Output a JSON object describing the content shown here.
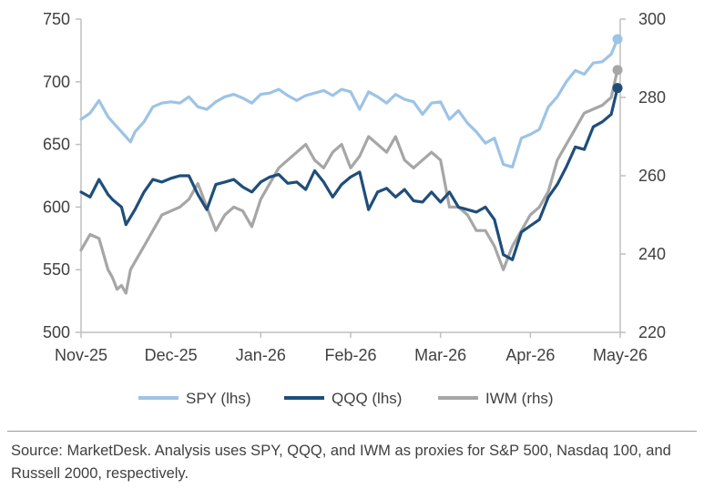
{
  "colors": {
    "SPY": "#9DC3E6",
    "QQQ": "#1F4E79",
    "IWM": "#A6A6A6",
    "axis": "#BFBFBF",
    "text": "#404040"
  },
  "chart_data": {
    "type": "line",
    "legend_position": "bottom",
    "grid": false,
    "left_axis": {
      "ylim": [
        500,
        750
      ],
      "ticks": [
        "500",
        "550",
        "600",
        "650",
        "700",
        "750"
      ]
    },
    "right_axis": {
      "ylim": [
        220,
        300
      ],
      "ticks": [
        "220",
        "240",
        "260",
        "280",
        "300"
      ]
    },
    "x_tick_labels": [
      "Nov-25",
      "Dec-25",
      "Jan-26",
      "Feb-26",
      "Mar-26",
      "Apr-26",
      "May-26"
    ],
    "x_range": [
      0,
      6
    ],
    "series": [
      {
        "name": "SPY (lhs)",
        "axis": "left",
        "color": "#9DC3E6",
        "x": [
          0,
          0.1,
          0.2,
          0.3,
          0.35,
          0.45,
          0.55,
          0.6,
          0.7,
          0.8,
          0.9,
          1.0,
          1.1,
          1.2,
          1.3,
          1.4,
          1.5,
          1.6,
          1.7,
          1.8,
          1.9,
          2.0,
          2.1,
          2.2,
          2.3,
          2.4,
          2.5,
          2.6,
          2.7,
          2.8,
          2.9,
          3.0,
          3.1,
          3.2,
          3.3,
          3.4,
          3.5,
          3.6,
          3.7,
          3.8,
          3.9,
          4.0,
          4.1,
          4.2,
          4.3,
          4.4,
          4.5,
          4.6,
          4.7,
          4.8,
          4.9,
          5.0,
          5.1,
          5.2,
          5.3,
          5.4,
          5.5,
          5.6,
          5.7,
          5.8,
          5.9,
          5.97
        ],
        "values": [
          670,
          675,
          685,
          672,
          668,
          660,
          652,
          660,
          668,
          680,
          683,
          684,
          683,
          688,
          680,
          678,
          684,
          688,
          690,
          687,
          683,
          690,
          691,
          694,
          689,
          685,
          689,
          691,
          693,
          689,
          694,
          692,
          678,
          692,
          688,
          683,
          690,
          686,
          684,
          674,
          683,
          684,
          670,
          677,
          667,
          660,
          651,
          655,
          634,
          632,
          655,
          658,
          662,
          680,
          688,
          700,
          709,
          706,
          715,
          716,
          722,
          734
        ]
      },
      {
        "name": "QQQ (lhs)",
        "axis": "left",
        "color": "#1F4E79",
        "x": [
          0,
          0.1,
          0.2,
          0.3,
          0.35,
          0.45,
          0.5,
          0.6,
          0.7,
          0.8,
          0.9,
          1.0,
          1.1,
          1.2,
          1.3,
          1.4,
          1.5,
          1.6,
          1.7,
          1.8,
          1.9,
          2.0,
          2.1,
          2.2,
          2.3,
          2.4,
          2.5,
          2.6,
          2.7,
          2.8,
          2.9,
          3.0,
          3.1,
          3.2,
          3.3,
          3.4,
          3.5,
          3.6,
          3.7,
          3.8,
          3.9,
          4.0,
          4.1,
          4.2,
          4.3,
          4.4,
          4.5,
          4.6,
          4.7,
          4.8,
          4.9,
          5.0,
          5.1,
          5.2,
          5.3,
          5.4,
          5.5,
          5.6,
          5.7,
          5.8,
          5.9,
          5.97
        ],
        "values": [
          612,
          608,
          622,
          610,
          606,
          600,
          586,
          598,
          612,
          622,
          620,
          623,
          625,
          625,
          610,
          598,
          618,
          620,
          622,
          616,
          612,
          620,
          624,
          626,
          619,
          620,
          614,
          629,
          620,
          608,
          618,
          624,
          628,
          598,
          612,
          615,
          608,
          614,
          605,
          604,
          612,
          604,
          612,
          600,
          598,
          596,
          600,
          590,
          562,
          558,
          580,
          585,
          590,
          608,
          618,
          632,
          648,
          646,
          664,
          668,
          674,
          695
        ]
      },
      {
        "name": "IWM (rhs)",
        "axis": "right",
        "color": "#A6A6A6",
        "x": [
          0,
          0.1,
          0.2,
          0.3,
          0.35,
          0.4,
          0.45,
          0.5,
          0.55,
          0.6,
          0.7,
          0.8,
          0.9,
          1.0,
          1.1,
          1.2,
          1.3,
          1.4,
          1.5,
          1.6,
          1.7,
          1.8,
          1.9,
          2.0,
          2.1,
          2.2,
          2.3,
          2.4,
          2.5,
          2.6,
          2.7,
          2.8,
          2.9,
          3.0,
          3.1,
          3.2,
          3.3,
          3.4,
          3.5,
          3.6,
          3.7,
          3.8,
          3.9,
          4.0,
          4.1,
          4.2,
          4.3,
          4.4,
          4.5,
          4.6,
          4.7,
          4.8,
          4.9,
          5.0,
          5.1,
          5.2,
          5.3,
          5.4,
          5.5,
          5.6,
          5.7,
          5.8,
          5.9,
          5.97
        ],
        "values": [
          241,
          245,
          244,
          236,
          234,
          231,
          232,
          230,
          236,
          238,
          242,
          246,
          250,
          251,
          252,
          254,
          258,
          252,
          246,
          250,
          252,
          251,
          247,
          254,
          258,
          262,
          264,
          266,
          268,
          264,
          262,
          266,
          268,
          262,
          265,
          270,
          268,
          266,
          270,
          264,
          262,
          264,
          266,
          264,
          252,
          252,
          250,
          246,
          246,
          242,
          236,
          242,
          246,
          250,
          252,
          256,
          264,
          268,
          272,
          276,
          277,
          278,
          280,
          287
        ]
      }
    ]
  },
  "legend": {
    "spy": "SPY (lhs)",
    "qqq": "QQQ (lhs)",
    "iwm": "IWM (rhs)"
  },
  "source": "Source: MarketDesk. Analysis uses SPY, QQQ, and IWM as proxies for S&P 500, Nasdaq 100, and Russell 2000, respectively."
}
